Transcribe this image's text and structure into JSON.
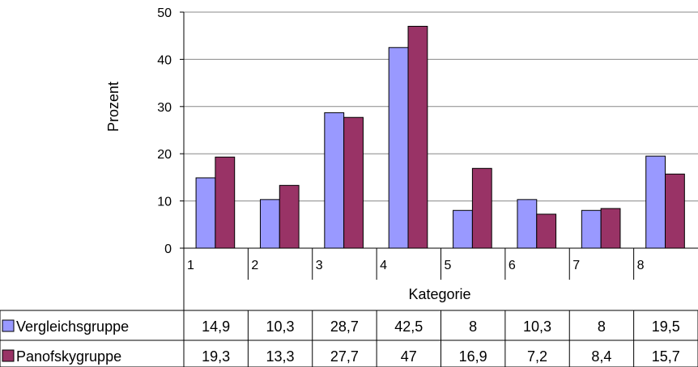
{
  "chart_data": {
    "type": "bar",
    "title": "",
    "ylabel": "Prozent",
    "xlabel": "Kategorie",
    "ylim": [
      0,
      50
    ],
    "yticks": [
      0,
      10,
      20,
      30,
      40,
      50
    ],
    "grid": true,
    "legend_placement": "data-table",
    "categories": [
      "1",
      "2",
      "3",
      "4",
      "5",
      "6",
      "7",
      "8"
    ],
    "series": [
      {
        "name": "Vergleichsgruppe",
        "color": "#9999ff",
        "values": [
          14.9,
          10.3,
          28.7,
          42.5,
          8,
          10.3,
          8,
          19.5
        ],
        "display": [
          "14,9",
          "10,3",
          "28,7",
          "42,5",
          "8",
          "10,3",
          "8",
          "19,5"
        ]
      },
      {
        "name": "Panofskygruppe",
        "color": "#993366",
        "values": [
          19.3,
          13.3,
          27.7,
          47,
          16.9,
          7.2,
          8.4,
          15.7
        ],
        "display": [
          "19,3",
          "13,3",
          "27,7",
          "47",
          "16,9",
          "7,2",
          "8,4",
          "15,7"
        ]
      }
    ]
  }
}
